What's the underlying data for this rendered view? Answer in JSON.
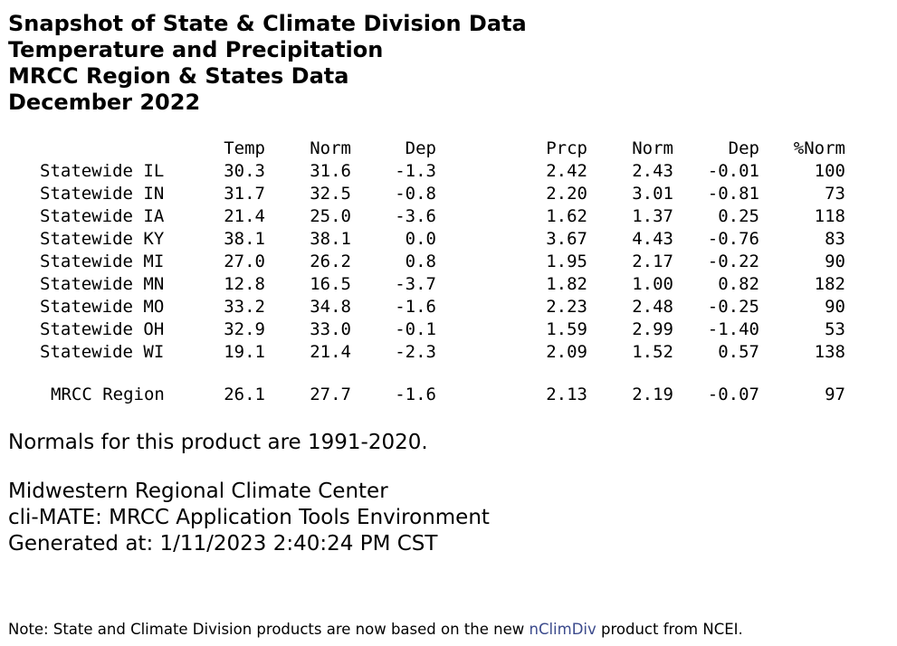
{
  "titles": [
    "Snapshot of State & Climate Division Data",
    "Temperature and Precipitation",
    "MRCC Region & States Data",
    "December 2022"
  ],
  "table": {
    "headers": {
      "temp": "Temp",
      "temp_norm": "Norm",
      "temp_dep": "Dep",
      "prcp": "Prcp",
      "prcp_norm": "Norm",
      "prcp_dep": "Dep",
      "pct_norm": "%Norm"
    },
    "rows": [
      {
        "name": "Statewide IL",
        "temp": "30.3",
        "temp_norm": "31.6",
        "temp_dep": "-1.3",
        "prcp": "2.42",
        "prcp_norm": "2.43",
        "prcp_dep": "-0.01",
        "pct_norm": "100"
      },
      {
        "name": "Statewide IN",
        "temp": "31.7",
        "temp_norm": "32.5",
        "temp_dep": "-0.8",
        "prcp": "2.20",
        "prcp_norm": "3.01",
        "prcp_dep": "-0.81",
        "pct_norm": "73"
      },
      {
        "name": "Statewide IA",
        "temp": "21.4",
        "temp_norm": "25.0",
        "temp_dep": "-3.6",
        "prcp": "1.62",
        "prcp_norm": "1.37",
        "prcp_dep": "0.25",
        "pct_norm": "118"
      },
      {
        "name": "Statewide KY",
        "temp": "38.1",
        "temp_norm": "38.1",
        "temp_dep": "0.0",
        "prcp": "3.67",
        "prcp_norm": "4.43",
        "prcp_dep": "-0.76",
        "pct_norm": "83"
      },
      {
        "name": "Statewide MI",
        "temp": "27.0",
        "temp_norm": "26.2",
        "temp_dep": "0.8",
        "prcp": "1.95",
        "prcp_norm": "2.17",
        "prcp_dep": "-0.22",
        "pct_norm": "90"
      },
      {
        "name": "Statewide MN",
        "temp": "12.8",
        "temp_norm": "16.5",
        "temp_dep": "-3.7",
        "prcp": "1.82",
        "prcp_norm": "1.00",
        "prcp_dep": "0.82",
        "pct_norm": "182"
      },
      {
        "name": "Statewide MO",
        "temp": "33.2",
        "temp_norm": "34.8",
        "temp_dep": "-1.6",
        "prcp": "2.23",
        "prcp_norm": "2.48",
        "prcp_dep": "-0.25",
        "pct_norm": "90"
      },
      {
        "name": "Statewide OH",
        "temp": "32.9",
        "temp_norm": "33.0",
        "temp_dep": "-0.1",
        "prcp": "1.59",
        "prcp_norm": "2.99",
        "prcp_dep": "-1.40",
        "pct_norm": "53"
      },
      {
        "name": "Statewide WI",
        "temp": "19.1",
        "temp_norm": "21.4",
        "temp_dep": "-2.3",
        "prcp": "2.09",
        "prcp_norm": "1.52",
        "prcp_dep": "0.57",
        "pct_norm": "138"
      }
    ],
    "region": {
      "name": "MRCC Region",
      "temp": "26.1",
      "temp_norm": "27.7",
      "temp_dep": "-1.6",
      "prcp": "2.13",
      "prcp_norm": "2.19",
      "prcp_dep": "-0.07",
      "pct_norm": "97"
    }
  },
  "normals_text": "Normals for this product are 1991-2020.",
  "credits": [
    "Midwestern Regional Climate Center",
    "cli-MATE: MRCC Application Tools Environment",
    "Generated at: 1/11/2023 2:40:24 PM CST"
  ],
  "note": {
    "prefix": "Note: State and Climate Division products are now based on the new ",
    "link_text": "nClimDiv",
    "suffix": " product from NCEI."
  },
  "colors": {
    "text": "#000000",
    "link": "#3b4a8c",
    "background": "#ffffff"
  }
}
